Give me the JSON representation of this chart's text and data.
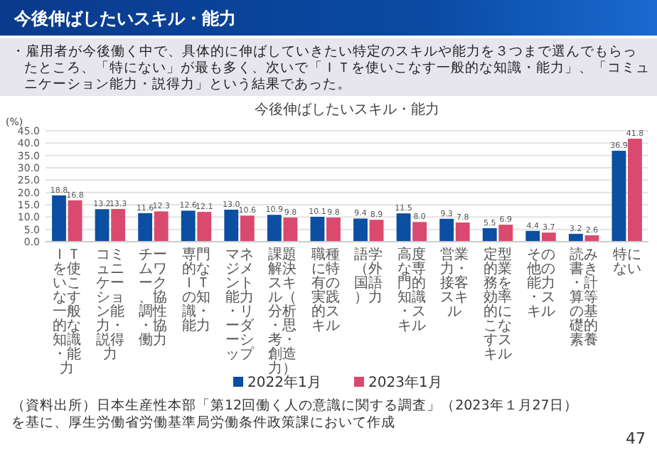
{
  "chart_data": {
    "type": "bar",
    "title": "今後伸ばしたいスキル・能力",
    "subtitle": "・雇用者が今後働く中で、具体的に伸ばしていきたい特定のスキルや能力を３つまで選んでもらったところ、「特にない」が最も多く、次いで「ＩＴを使いこなす一般的な知識・能力」、「コミュニケーション能力・説得力」という結果であった。",
    "annotations": [
      "今後伸ばしたいスキル・能力",
      "（資料出所）日本生産性本部「第12回働く人の意識に関する調査」（2023年１月27日）を基に、厚生労働省労働基準局労働条件政策課において作成",
      "47"
    ],
    "ylabel": "(%)",
    "categories": [
      "ＩＴを使いこなす一般的な知識・能力",
      "コミュニケーション能力・説得力",
      "チームワーク、協調性・協働力",
      "専門的なＩＴの知識・能力",
      "マネジメント能力・リーダーシップ",
      "課題解決スキル（分析・思考・創造力）",
      "職種に特有の実践的スキル",
      "語学（外国語）力",
      "高度な専門的知識・スキル",
      "営業力・接客スキル",
      "定型的業務を効率的にこなすスキル",
      "その他の能力・スキル",
      "読み書き・計算等の基礎的素養",
      "特にない"
    ],
    "series": [
      {
        "name": "2022年1月",
        "color": "#0b4ea2",
        "values": [
          18.8,
          13.2,
          11.6,
          12.6,
          13.0,
          10.9,
          10.1,
          9.4,
          11.5,
          9.3,
          5.5,
          4.4,
          3.2,
          36.9
        ],
        "value_labels": [
          "18.8",
          "13.2",
          "11.6",
          "12.6",
          "13.0",
          "10.9",
          "10.1",
          "9.4",
          "11.5",
          "9.3",
          "5.5",
          "4.4",
          "3.2",
          "36.9"
        ]
      },
      {
        "name": "2023年1月",
        "color": "#d94a6e",
        "values": [
          16.8,
          13.3,
          12.3,
          12.1,
          10.6,
          9.8,
          9.8,
          8.9,
          8.0,
          7.8,
          6.9,
          3.7,
          2.6,
          41.8
        ],
        "value_labels": [
          "16.8",
          "13.3",
          "12.3",
          "12.1",
          "10.6",
          "9.8",
          "9.8",
          "8.9",
          "8.0",
          "7.8",
          "6.9",
          "3.7",
          "2.6",
          "41.8"
        ]
      }
    ],
    "ylim": [
      0,
      45
    ],
    "yticks": [
      {
        "value": 0,
        "label": "0.0"
      },
      {
        "value": 5,
        "label": "5.0"
      },
      {
        "value": 10,
        "label": "10.0"
      },
      {
        "value": 15,
        "label": "15.0"
      },
      {
        "value": 20,
        "label": "20.0"
      },
      {
        "value": 25,
        "label": "25.0"
      },
      {
        "value": 30,
        "label": "30.0"
      },
      {
        "value": 35,
        "label": "35.0"
      },
      {
        "value": 40,
        "label": "40.0"
      },
      {
        "value": 45,
        "label": "45.0"
      }
    ],
    "grid": "y",
    "legend": "bottom"
  }
}
